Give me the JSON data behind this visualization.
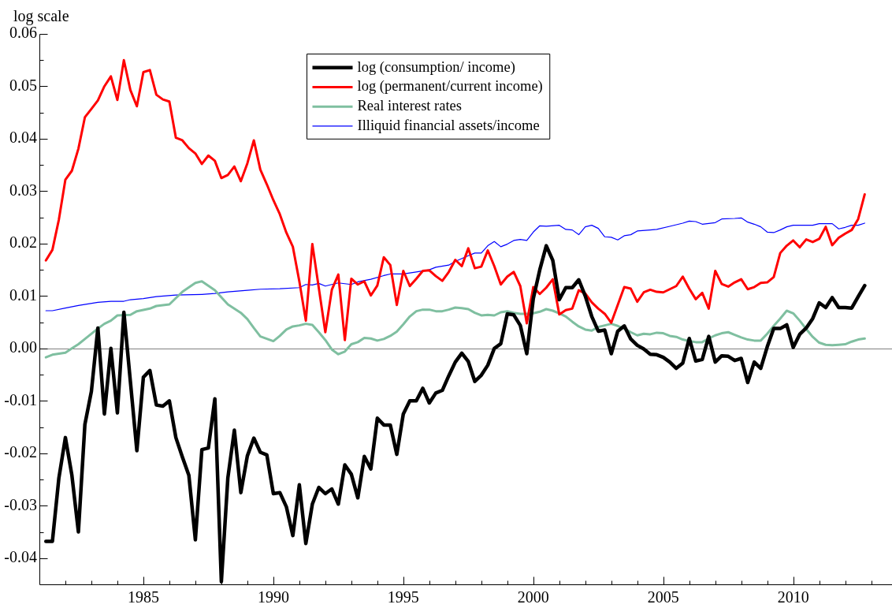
{
  "chart_data": {
    "type": "line",
    "ylabel": "log scale",
    "legend": "top",
    "xlim": [
      1981,
      2013.8
    ],
    "xticks": [
      {
        "value": 1982,
        "label": null
      },
      {
        "value": 1983,
        "label": null
      },
      {
        "value": 1984,
        "label": null
      },
      1985,
      {
        "value": 1986,
        "label": null
      },
      {
        "value": 1987,
        "label": null
      },
      {
        "value": 1988,
        "label": null
      },
      {
        "value": 1989,
        "label": null
      },
      1990,
      {
        "value": 1991,
        "label": null
      },
      {
        "value": 1992,
        "label": null
      },
      {
        "value": 1993,
        "label": null
      },
      {
        "value": 1994,
        "label": null
      },
      1995,
      {
        "value": 1996,
        "label": null
      },
      {
        "value": 1997,
        "label": null
      },
      {
        "value": 1998,
        "label": null
      },
      {
        "value": 1999,
        "label": null
      },
      2000,
      {
        "value": 2001,
        "label": null
      },
      {
        "value": 2002,
        "label": null
      },
      {
        "value": 2003,
        "label": null
      },
      {
        "value": 2004,
        "label": null
      },
      2005,
      {
        "value": 2006,
        "label": null
      },
      {
        "value": 2007,
        "label": null
      },
      {
        "value": 2008,
        "label": null
      },
      {
        "value": 2009,
        "label": null
      },
      2010,
      {
        "value": 2011,
        "label": null
      },
      {
        "value": 2012,
        "label": null
      },
      {
        "value": 2013,
        "label": null
      }
    ],
    "ylim": [
      -0.045,
      0.06
    ],
    "yticks": [
      -0.04,
      {
        "value": -0.035,
        "label": null
      },
      -0.03,
      {
        "value": -0.025,
        "label": null
      },
      -0.02,
      {
        "value": -0.015,
        "label": null
      },
      -0.01,
      {
        "value": -0.005,
        "label": null
      },
      {
        "value": 0,
        "label": "0.00"
      },
      {
        "value": 0.005,
        "label": null
      },
      0.01,
      {
        "value": 0.015,
        "label": null
      },
      0.02,
      {
        "value": 0.025,
        "label": null
      },
      0.03,
      {
        "value": 0.035,
        "label": null
      },
      0.04,
      {
        "value": 0.045,
        "label": null
      },
      0.05,
      {
        "value": 0.055,
        "label": null
      },
      0.06
    ],
    "ref_lines": [
      {
        "axis": "y",
        "value": 0,
        "color": "#808080"
      }
    ],
    "series": [
      {
        "name": "log (consumption/ income)",
        "color": "#000000",
        "x": [
          1981.25,
          1981.5,
          1981.75,
          1982,
          1982.25,
          1982.5,
          1982.75,
          1983,
          1983.25,
          1983.5,
          1983.75,
          1984,
          1984.25,
          1984.5,
          1984.75,
          1985,
          1985.25,
          1985.5,
          1985.75,
          1986,
          1986.25,
          1986.5,
          1986.75,
          1987,
          1987.25,
          1987.5,
          1987.75,
          1988,
          1988.25,
          1988.5,
          1988.75,
          1989,
          1989.25,
          1989.5,
          1989.75,
          1990,
          1990.25,
          1990.5,
          1990.75,
          1991,
          1991.25,
          1991.5,
          1991.75,
          1992,
          1992.25,
          1992.5,
          1992.75,
          1993,
          1993.25,
          1993.5,
          1993.75,
          1994,
          1994.25,
          1994.5,
          1994.75,
          1995,
          1995.25,
          1995.5,
          1995.75,
          1996,
          1996.25,
          1996.5,
          1996.75,
          1997,
          1997.25,
          1997.5,
          1997.75,
          1998,
          1998.25,
          1998.5,
          1998.75,
          1999,
          1999.25,
          1999.5,
          1999.75,
          2000,
          2000.25,
          2000.5,
          2000.75,
          2001,
          2001.25,
          2001.5,
          2001.75,
          2002,
          2002.25,
          2002.5,
          2002.75,
          2003,
          2003.25,
          2003.5,
          2003.75,
          2004,
          2004.25,
          2004.5,
          2004.75,
          2005,
          2005.25,
          2005.5,
          2005.75,
          2006,
          2006.25,
          2006.5,
          2006.75,
          2007,
          2007.25,
          2007.5,
          2007.75,
          2008,
          2008.25,
          2008.5,
          2008.75,
          2009,
          2009.25,
          2009.5,
          2009.75,
          2010,
          2010.25,
          2010.5,
          2010.75,
          2011,
          2011.25,
          2011.5,
          2011.75,
          2012,
          2012.25,
          2012.5,
          2012.75
        ],
        "values": [
          -0.0368,
          -0.0368,
          -0.0247,
          -0.017,
          -0.0242,
          -0.035,
          -0.0145,
          -0.0082,
          0.0039,
          -0.0125,
          0.0,
          -0.0123,
          0.0069,
          -0.0063,
          -0.0195,
          -0.0055,
          -0.0042,
          -0.0108,
          -0.011,
          -0.01,
          -0.017,
          -0.0207,
          -0.0242,
          -0.0365,
          -0.0193,
          -0.019,
          -0.0096,
          -0.0445,
          -0.0247,
          -0.0156,
          -0.0275,
          -0.0205,
          -0.0171,
          -0.0198,
          -0.0203,
          -0.0277,
          -0.0275,
          -0.0302,
          -0.0357,
          -0.026,
          -0.0372,
          -0.0297,
          -0.0265,
          -0.0277,
          -0.0268,
          -0.0297,
          -0.0222,
          -0.024,
          -0.0285,
          -0.0206,
          -0.023,
          -0.0133,
          -0.0146,
          -0.0146,
          -0.0202,
          -0.0125,
          -0.01,
          -0.01,
          -0.0076,
          -0.0104,
          -0.0085,
          -0.008,
          -0.0052,
          -0.0026,
          -0.0009,
          -0.0025,
          -0.0063,
          -0.0051,
          -0.0032,
          0.0,
          0.0009,
          0.0066,
          0.0064,
          0.0044,
          -0.001,
          0.0095,
          0.015,
          0.0196,
          0.0168,
          0.0093,
          0.0116,
          0.0116,
          0.0131,
          0.01,
          0.0061,
          0.0033,
          0.0035,
          -0.001,
          0.0033,
          0.0043,
          0.0018,
          0.0006,
          -0.0001,
          -0.0011,
          -0.0012,
          -0.0017,
          -0.0026,
          -0.0038,
          -0.0028,
          0.0019,
          -0.0024,
          -0.0021,
          0.0023,
          -0.0026,
          -0.0014,
          -0.0015,
          -0.0023,
          -0.0019,
          -0.0065,
          -0.0026,
          -0.0038,
          0.0003,
          0.0038,
          0.0038,
          0.0045,
          0.0002,
          0.0027,
          0.0039,
          0.0057,
          0.0087,
          0.0078,
          0.0097,
          0.0078,
          0.0078,
          0.0077,
          0.0099,
          0.012
        ]
      },
      {
        "name": "log (permanent/current income)",
        "color": "#ff0000",
        "x": [
          1981.25,
          1981.5,
          1981.75,
          1982,
          1982.25,
          1982.5,
          1982.75,
          1983,
          1983.25,
          1983.5,
          1983.75,
          1984,
          1984.25,
          1984.5,
          1984.75,
          1985,
          1985.25,
          1985.5,
          1985.75,
          1986,
          1986.25,
          1986.5,
          1986.75,
          1987,
          1987.25,
          1987.5,
          1987.75,
          1988,
          1988.25,
          1988.5,
          1988.75,
          1989,
          1989.25,
          1989.5,
          1989.75,
          1990,
          1990.25,
          1990.5,
          1990.75,
          1991,
          1991.25,
          1991.5,
          1992,
          1992.25,
          1992.5,
          1992.75,
          1993,
          1993.25,
          1993.5,
          1993.75,
          1994,
          1994.25,
          1994.5,
          1994.75,
          1995,
          1995.25,
          1995.5,
          1995.75,
          1996,
          1996.25,
          1996.5,
          1996.75,
          1997,
          1997.25,
          1997.5,
          1997.75,
          1998,
          1998.25,
          1998.5,
          1998.75,
          1999,
          1999.25,
          1999.5,
          1999.75,
          2000,
          2000.25,
          2000.5,
          2000.75,
          2001,
          2001.25,
          2001.5,
          2001.75,
          2002,
          2002.25,
          2002.5,
          2002.75,
          2003,
          2003.5,
          2003.75,
          2004,
          2004.25,
          2004.5,
          2004.75,
          2005,
          2005.25,
          2005.5,
          2005.75,
          2006,
          2006.25,
          2006.5,
          2006.75,
          2007,
          2007.25,
          2007.5,
          2007.75,
          2008,
          2008.25,
          2008.5,
          2008.75,
          2009,
          2009.25,
          2009.5,
          2009.75,
          2010,
          2010.25,
          2010.5,
          2010.75,
          2011,
          2011.25,
          2011.5,
          2011.75,
          2012,
          2012.25,
          2012.5,
          2012.75
        ],
        "values": [
          0.0168,
          0.0188,
          0.0246,
          0.0322,
          0.0339,
          0.0381,
          0.0441,
          0.0457,
          0.0473,
          0.05,
          0.0519,
          0.0474,
          0.055,
          0.0493,
          0.0462,
          0.0527,
          0.0531,
          0.0484,
          0.0475,
          0.0471,
          0.0402,
          0.0397,
          0.0382,
          0.0372,
          0.0352,
          0.0368,
          0.0358,
          0.0325,
          0.0331,
          0.0347,
          0.0319,
          0.0353,
          0.0397,
          0.0341,
          0.0313,
          0.0283,
          0.0256,
          0.0221,
          0.0194,
          0.0128,
          0.0053,
          0.0199,
          0.0031,
          0.0112,
          0.0141,
          0.0016,
          0.0133,
          0.0122,
          0.0128,
          0.0101,
          0.012,
          0.0174,
          0.0159,
          0.0083,
          0.0148,
          0.0119,
          0.0133,
          0.0148,
          0.0149,
          0.0138,
          0.0129,
          0.0146,
          0.0169,
          0.0157,
          0.0191,
          0.0153,
          0.0156,
          0.0187,
          0.0157,
          0.0122,
          0.0137,
          0.0146,
          0.0119,
          0.0048,
          0.0117,
          0.0104,
          0.0116,
          0.0132,
          0.0065,
          0.0073,
          0.0076,
          0.0111,
          0.0105,
          0.0088,
          0.0076,
          0.0066,
          0.0049,
          0.0117,
          0.0114,
          0.0089,
          0.0107,
          0.0112,
          0.0108,
          0.0107,
          0.0113,
          0.0119,
          0.0137,
          0.0114,
          0.0094,
          0.0106,
          0.0076,
          0.0148,
          0.0123,
          0.0118,
          0.0126,
          0.0132,
          0.0113,
          0.0117,
          0.0125,
          0.0126,
          0.0136,
          0.0182,
          0.0196,
          0.0206,
          0.0193,
          0.0208,
          0.0203,
          0.0209,
          0.0232,
          0.0197,
          0.0211,
          0.0219,
          0.0226,
          0.0247,
          0.0294
        ]
      },
      {
        "name": "Real interest rates",
        "color": "#7fbfa0",
        "x": [
          1981.25,
          1981.5,
          1982,
          1982.25,
          1982.5,
          1982.75,
          1983.25,
          1983.5,
          1983.75,
          1984,
          1984.5,
          1984.75,
          1985.25,
          1985.5,
          1986,
          1986.25,
          1986.5,
          1987,
          1987.25,
          1987.75,
          1988.25,
          1988.75,
          1989,
          1989.25,
          1989.5,
          1990,
          1990.25,
          1990.5,
          1990.75,
          1991,
          1991.25,
          1991.5,
          1991.75,
          1992,
          1992.25,
          1992.5,
          1992.75,
          1993,
          1993.25,
          1993.5,
          1993.75,
          1994,
          1994.25,
          1994.5,
          1994.75,
          1995,
          1995.25,
          1995.5,
          1995.75,
          1996,
          1996.25,
          1996.5,
          1996.75,
          1997,
          1997.25,
          1997.5,
          1997.75,
          1998,
          1998.25,
          1998.5,
          1998.75,
          1999,
          1999.25,
          1999.5,
          1999.75,
          2000,
          2000.25,
          2000.5,
          2000.75,
          2001,
          2001.25,
          2001.5,
          2001.75,
          2002,
          2002.25,
          2002.5,
          2002.75,
          2003,
          2003.25,
          2003.5,
          2003.75,
          2004,
          2004.25,
          2004.5,
          2004.75,
          2005,
          2005.25,
          2005.5,
          2005.75,
          2006,
          2006.25,
          2006.5,
          2006.75,
          2007,
          2007.25,
          2007.5,
          2007.75,
          2008,
          2008.25,
          2008.5,
          2008.75,
          2009,
          2009.25,
          2009.5,
          2009.75,
          2010,
          2010.25,
          2010.5,
          2010.75,
          2011,
          2011.25,
          2011.5,
          2011.75,
          2012,
          2012.25,
          2012.5,
          2012.75
        ],
        "values": [
          -0.0017,
          -0.0012,
          -0.0008,
          0.0,
          0.0008,
          0.0018,
          0.0038,
          0.0047,
          0.0053,
          0.0063,
          0.0064,
          0.0071,
          0.0076,
          0.0081,
          0.0084,
          0.0096,
          0.0108,
          0.0125,
          0.0128,
          0.0111,
          0.0084,
          0.0068,
          0.0056,
          0.0039,
          0.0023,
          0.0014,
          0.0024,
          0.0036,
          0.0042,
          0.0044,
          0.0047,
          0.0045,
          0.0031,
          0.0016,
          -0.0002,
          -0.0011,
          -0.0006,
          0.0008,
          0.0012,
          0.002,
          0.0019,
          0.0015,
          0.0018,
          0.0024,
          0.0032,
          0.0046,
          0.0061,
          0.0071,
          0.0074,
          0.0074,
          0.0071,
          0.0071,
          0.0074,
          0.0078,
          0.0077,
          0.0075,
          0.0068,
          0.0063,
          0.0064,
          0.0063,
          0.0069,
          0.0071,
          0.0068,
          0.0066,
          0.0066,
          0.0067,
          0.007,
          0.0075,
          0.0072,
          0.0067,
          0.0061,
          0.0051,
          0.0042,
          0.0036,
          0.0034,
          0.0041,
          0.0044,
          0.0047,
          0.0043,
          0.0038,
          0.0031,
          0.0025,
          0.0028,
          0.0027,
          0.003,
          0.0029,
          0.0024,
          0.0022,
          0.0017,
          0.0014,
          0.0012,
          0.0012,
          0.0019,
          0.0025,
          0.0029,
          0.0031,
          0.0026,
          0.0021,
          0.0017,
          0.0015,
          0.0015,
          0.0028,
          0.0043,
          0.0057,
          0.0072,
          0.0067,
          0.0053,
          0.0037,
          0.0022,
          0.0011,
          0.0007,
          0.0006,
          0.0007,
          0.0008,
          0.0013,
          0.0017,
          0.0019
        ]
      },
      {
        "name": "Illiquid financial assets/income",
        "color": "#0000ff",
        "x": [
          1981.25,
          1981.5,
          1982,
          1982.5,
          1983.25,
          1983.75,
          1984.25,
          1984.5,
          1985,
          1985.5,
          1986.25,
          1987.25,
          1987.75,
          1988.25,
          1989,
          1989.5,
          1990.25,
          1991,
          1991.25,
          1991.5,
          1991.75,
          1992,
          1992.5,
          1993,
          1993.25,
          1993.75,
          1994.25,
          1994.5,
          1995,
          1995.5,
          1996,
          1996.25,
          1996.75,
          1997,
          1997.5,
          1997.75,
          1998,
          1998.25,
          1998.5,
          1998.75,
          1999,
          1999.25,
          1999.5,
          1999.75,
          2000,
          2000.25,
          2000.5,
          2001,
          2001.25,
          2001.5,
          2001.75,
          2002,
          2002.25,
          2002.5,
          2002.75,
          2003,
          2003.25,
          2003.5,
          2003.75,
          2004,
          2004.5,
          2004.75,
          2005.25,
          2005.75,
          2006,
          2006.25,
          2006.5,
          2007,
          2007.25,
          2007.75,
          2008,
          2008.25,
          2008.5,
          2008.75,
          2009,
          2009.25,
          2009.5,
          2009.75,
          2010,
          2010.5,
          2010.75,
          2011,
          2011.5,
          2011.75,
          2012,
          2012.25,
          2012.5,
          2012.75
        ],
        "values": [
          0.0072,
          0.0072,
          0.0077,
          0.0082,
          0.0088,
          0.009,
          0.009,
          0.0093,
          0.0095,
          0.0099,
          0.0102,
          0.0103,
          0.0105,
          0.0108,
          0.0111,
          0.0113,
          0.0114,
          0.0116,
          0.0122,
          0.0121,
          0.0124,
          0.0119,
          0.0125,
          0.0122,
          0.0127,
          0.0132,
          0.0139,
          0.0142,
          0.0142,
          0.0146,
          0.015,
          0.0155,
          0.0159,
          0.0166,
          0.0177,
          0.0182,
          0.0182,
          0.0196,
          0.0204,
          0.0194,
          0.0199,
          0.0206,
          0.0208,
          0.0206,
          0.0222,
          0.0234,
          0.0233,
          0.0235,
          0.0227,
          0.0226,
          0.0217,
          0.0232,
          0.0235,
          0.0229,
          0.0213,
          0.0212,
          0.0207,
          0.0215,
          0.0217,
          0.0224,
          0.0226,
          0.0227,
          0.0233,
          0.0239,
          0.0243,
          0.0242,
          0.0237,
          0.024,
          0.0247,
          0.0248,
          0.0249,
          0.0241,
          0.0237,
          0.0232,
          0.0222,
          0.0221,
          0.0226,
          0.0232,
          0.0235,
          0.0235,
          0.0235,
          0.0238,
          0.0238,
          0.0228,
          0.0231,
          0.0235,
          0.0235,
          0.0239
        ]
      }
    ]
  }
}
